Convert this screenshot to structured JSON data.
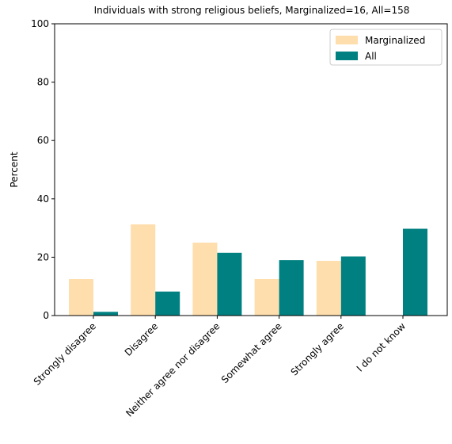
{
  "chart_data": {
    "type": "bar",
    "title": "Individuals with strong religious beliefs, Marginalized=16, All=158",
    "xlabel": "",
    "ylabel": "Percent",
    "ylim": [
      0,
      100
    ],
    "yticks": [
      0,
      20,
      40,
      60,
      80,
      100
    ],
    "grid": false,
    "legend_position": "top-right",
    "categories": [
      "Strongly disagree",
      "Disagree",
      "Neither agree nor disagree",
      "Somewhat agree",
      "Strongly agree",
      "I do not know"
    ],
    "series": [
      {
        "name": "Marginalized",
        "color": "#ffdead",
        "values": [
          12.5,
          31.25,
          25.0,
          12.5,
          18.75,
          0
        ]
      },
      {
        "name": "All",
        "color": "#008080",
        "values": [
          1.27,
          8.23,
          21.52,
          18.99,
          20.25,
          29.75
        ]
      }
    ]
  }
}
